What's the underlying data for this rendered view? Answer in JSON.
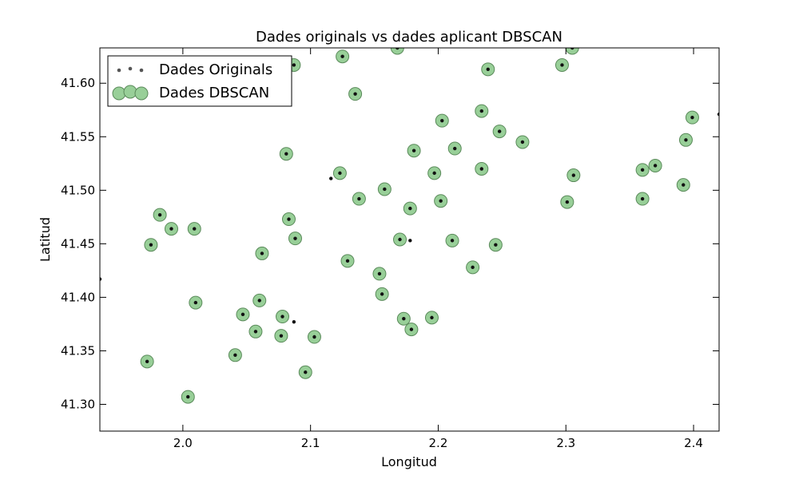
{
  "chart_data": {
    "type": "scatter",
    "title": "Dades originals vs dades aplicant DBSCAN",
    "xlabel": "Longitud",
    "ylabel": "Latitud",
    "xlim": [
      1.935,
      2.42
    ],
    "ylim": [
      41.275,
      41.633
    ],
    "xticks": [
      "2.0",
      "2.1",
      "2.2",
      "2.3",
      "2.4"
    ],
    "yticks": [
      "41.30",
      "41.35",
      "41.40",
      "41.45",
      "41.50",
      "41.55",
      "41.60"
    ],
    "grid": false,
    "legend": {
      "placement": "top-left",
      "entries": [
        "Dades Originals",
        "Dades DBSCAN"
      ]
    },
    "colors": {
      "original": "#555555",
      "dbscan_fill": "#98cf98",
      "dbscan_edge": "#5a8a5a"
    },
    "series": [
      {
        "name": "Dades Originals",
        "points": [
          [
            1.935,
            41.417
          ],
          [
            1.972,
            41.34
          ],
          [
            1.975,
            41.449
          ],
          [
            1.982,
            41.477
          ],
          [
            1.991,
            41.464
          ],
          [
            2.004,
            41.307
          ],
          [
            2.009,
            41.464
          ],
          [
            2.01,
            41.395
          ],
          [
            2.041,
            41.346
          ],
          [
            2.047,
            41.384
          ],
          [
            2.057,
            41.368
          ],
          [
            2.06,
            41.397
          ],
          [
            2.062,
            41.441
          ],
          [
            2.077,
            41.364
          ],
          [
            2.078,
            41.382
          ],
          [
            2.081,
            41.534
          ],
          [
            2.083,
            41.473
          ],
          [
            2.087,
            41.617
          ],
          [
            2.088,
            41.455
          ],
          [
            2.087,
            41.377
          ],
          [
            2.096,
            41.33
          ],
          [
            2.103,
            41.363
          ],
          [
            2.116,
            41.511
          ],
          [
            2.123,
            41.516
          ],
          [
            2.125,
            41.625
          ],
          [
            2.129,
            41.434
          ],
          [
            2.135,
            41.59
          ],
          [
            2.138,
            41.492
          ],
          [
            2.154,
            41.422
          ],
          [
            2.156,
            41.403
          ],
          [
            2.158,
            41.501
          ],
          [
            2.168,
            41.633
          ],
          [
            2.17,
            41.454
          ],
          [
            2.173,
            41.38
          ],
          [
            2.178,
            41.483
          ],
          [
            2.178,
            41.453
          ],
          [
            2.179,
            41.37
          ],
          [
            2.181,
            41.537
          ],
          [
            2.195,
            41.381
          ],
          [
            2.197,
            41.516
          ],
          [
            2.202,
            41.49
          ],
          [
            2.203,
            41.565
          ],
          [
            2.211,
            41.453
          ],
          [
            2.213,
            41.539
          ],
          [
            2.227,
            41.428
          ],
          [
            2.234,
            41.574
          ],
          [
            2.234,
            41.52
          ],
          [
            2.239,
            41.613
          ],
          [
            2.245,
            41.449
          ],
          [
            2.248,
            41.555
          ],
          [
            2.266,
            41.545
          ],
          [
            2.297,
            41.617
          ],
          [
            2.301,
            41.489
          ],
          [
            2.305,
            41.633
          ],
          [
            2.306,
            41.514
          ],
          [
            2.36,
            41.519
          ],
          [
            2.36,
            41.492
          ],
          [
            2.37,
            41.523
          ],
          [
            2.392,
            41.505
          ],
          [
            2.394,
            41.547
          ],
          [
            2.399,
            41.568
          ],
          [
            2.42,
            41.571
          ]
        ]
      },
      {
        "name": "Dades DBSCAN",
        "points": [
          [
            1.972,
            41.34
          ],
          [
            1.975,
            41.449
          ],
          [
            1.982,
            41.477
          ],
          [
            1.991,
            41.464
          ],
          [
            2.004,
            41.307
          ],
          [
            2.009,
            41.464
          ],
          [
            2.01,
            41.395
          ],
          [
            2.041,
            41.346
          ],
          [
            2.047,
            41.384
          ],
          [
            2.057,
            41.368
          ],
          [
            2.06,
            41.397
          ],
          [
            2.062,
            41.441
          ],
          [
            2.077,
            41.364
          ],
          [
            2.078,
            41.382
          ],
          [
            2.081,
            41.534
          ],
          [
            2.083,
            41.473
          ],
          [
            2.087,
            41.617
          ],
          [
            2.088,
            41.455
          ],
          [
            2.096,
            41.33
          ],
          [
            2.103,
            41.363
          ],
          [
            2.123,
            41.516
          ],
          [
            2.125,
            41.625
          ],
          [
            2.129,
            41.434
          ],
          [
            2.135,
            41.59
          ],
          [
            2.138,
            41.492
          ],
          [
            2.154,
            41.422
          ],
          [
            2.156,
            41.403
          ],
          [
            2.158,
            41.501
          ],
          [
            2.168,
            41.633
          ],
          [
            2.17,
            41.454
          ],
          [
            2.173,
            41.38
          ],
          [
            2.178,
            41.483
          ],
          [
            2.179,
            41.37
          ],
          [
            2.181,
            41.537
          ],
          [
            2.195,
            41.381
          ],
          [
            2.197,
            41.516
          ],
          [
            2.202,
            41.49
          ],
          [
            2.203,
            41.565
          ],
          [
            2.211,
            41.453
          ],
          [
            2.213,
            41.539
          ],
          [
            2.227,
            41.428
          ],
          [
            2.234,
            41.574
          ],
          [
            2.234,
            41.52
          ],
          [
            2.239,
            41.613
          ],
          [
            2.245,
            41.449
          ],
          [
            2.248,
            41.555
          ],
          [
            2.266,
            41.545
          ],
          [
            2.297,
            41.617
          ],
          [
            2.301,
            41.489
          ],
          [
            2.305,
            41.633
          ],
          [
            2.306,
            41.514
          ],
          [
            2.36,
            41.519
          ],
          [
            2.36,
            41.492
          ],
          [
            2.37,
            41.523
          ],
          [
            2.392,
            41.505
          ],
          [
            2.394,
            41.547
          ],
          [
            2.399,
            41.568
          ]
        ]
      }
    ]
  }
}
